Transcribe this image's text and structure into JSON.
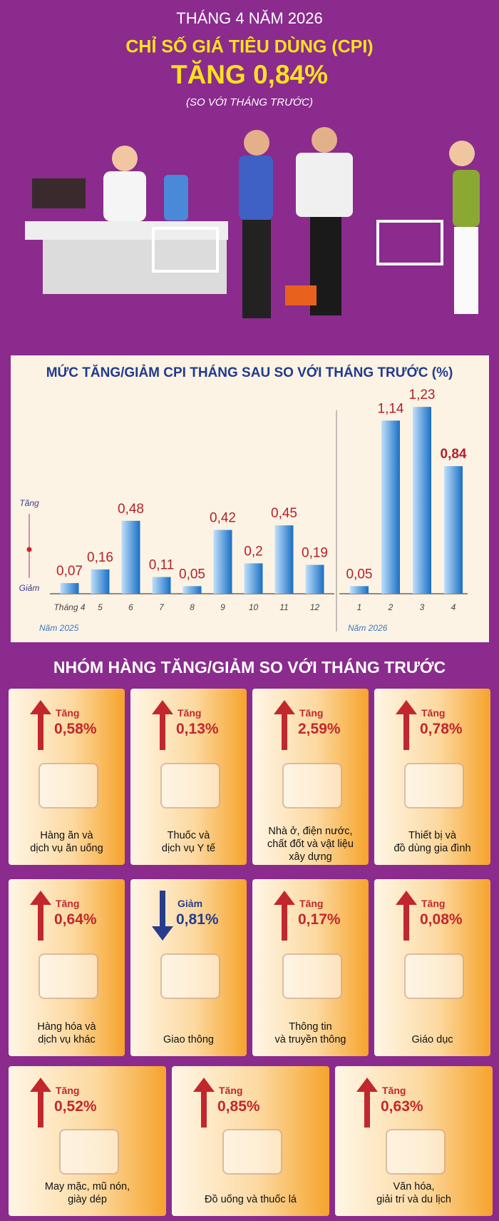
{
  "header": {
    "subtitle": "THÁNG 4 NĂM 2026",
    "title": "CHỈ SỐ GIÁ TIÊU DÙNG (CPI)",
    "headline": "TĂNG 0,84%",
    "note": "(SO VỚI THÁNG TRƯỚC)"
  },
  "chart_data": {
    "type": "bar",
    "title": "MỨC TĂNG/GIẢM CPI THÁNG SAU SO VỚI THÁNG TRƯỚC (%)",
    "axis_labels": {
      "up": "Tăng",
      "down": "Giảm"
    },
    "color": "#1a6fc4",
    "ylim": [
      0,
      1.4
    ],
    "groups": [
      {
        "label": "Năm 2025",
        "categories": [
          "Tháng 4",
          "5",
          "6",
          "7",
          "8",
          "9",
          "10",
          "11",
          "12"
        ],
        "values": [
          0.07,
          0.16,
          0.48,
          0.11,
          0.05,
          0.42,
          0.2,
          0.45,
          0.19
        ],
        "value_labels": [
          "0,07",
          "0,16",
          "0,48",
          "0,11",
          "0,05",
          "0,42",
          "0,2",
          "0,45",
          "0,19"
        ]
      },
      {
        "label": "Năm 2026",
        "categories": [
          "1",
          "2",
          "3",
          "4"
        ],
        "values": [
          0.05,
          1.14,
          1.23,
          0.84
        ],
        "value_labels": [
          "0,05",
          "1,14",
          "1,23",
          "0,84"
        ]
      }
    ]
  },
  "groups_section": {
    "title": "NHÓM HÀNG TĂNG/GIẢM SO VỚI THÁNG TRƯỚC",
    "cards": [
      {
        "change": "Tăng",
        "value": "0,58%",
        "label": "Hàng ăn và\ndịch vụ ăn uống",
        "direction": "up",
        "color": "#c1272d"
      },
      {
        "change": "Tăng",
        "value": "0,13%",
        "label": "Thuốc và\ndịch vụ Y tế",
        "direction": "up",
        "color": "#c1272d"
      },
      {
        "change": "Tăng",
        "value": "2,59%",
        "label": "Nhà ở, điện nước,\nchất đốt và vật liệu\nxây dựng",
        "direction": "up",
        "color": "#c1272d"
      },
      {
        "change": "Tăng",
        "value": "0,78%",
        "label": "Thiết bị và\nđồ dùng gia đình",
        "direction": "up",
        "color": "#c1272d"
      },
      {
        "change": "Tăng",
        "value": "0,64%",
        "label": "Hàng hóa và\ndịch vụ khác",
        "direction": "up",
        "color": "#c1272d"
      },
      {
        "change": "Giảm",
        "value": "0,81%",
        "label": "Giao thông",
        "direction": "down",
        "color": "#283c8e"
      },
      {
        "change": "Tăng",
        "value": "0,17%",
        "label": "Thông tin\nvà truyền thông",
        "direction": "up",
        "color": "#c1272d"
      },
      {
        "change": "Tăng",
        "value": "0,08%",
        "label": "Giáo dục",
        "direction": "up",
        "color": "#c1272d"
      },
      {
        "change": "Tăng",
        "value": "0,52%",
        "label": "May mặc, mũ nón,\ngiày dép",
        "direction": "up",
        "color": "#c1272d"
      },
      {
        "change": "Tăng",
        "value": "0,85%",
        "label": "Đồ uống và thuốc lá",
        "direction": "up",
        "color": "#c1272d"
      },
      {
        "change": "Tăng",
        "value": "0,63%",
        "label": "Văn hóa,\ngiải trí và du lịch",
        "direction": "up",
        "color": "#c1272d"
      }
    ]
  }
}
